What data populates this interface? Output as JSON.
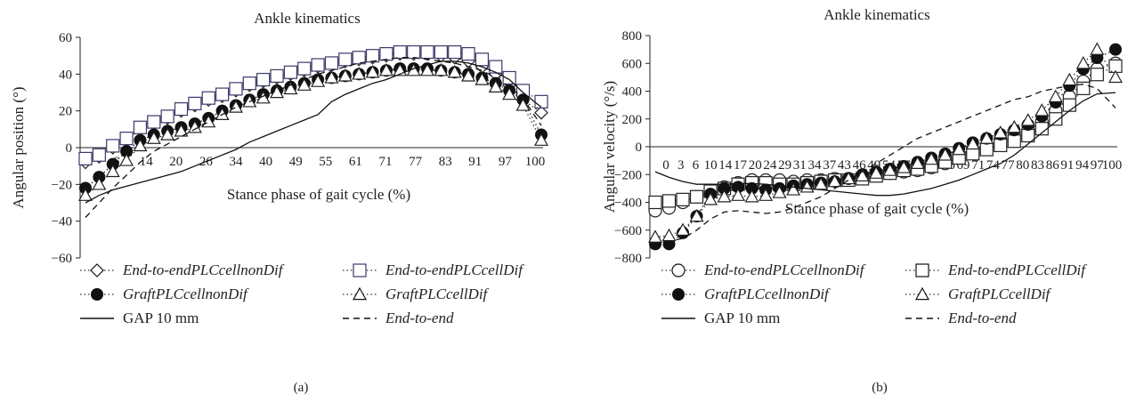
{
  "chart_data": [
    {
      "panel_label": "(a)",
      "type": "line",
      "title": "Ankle kinematics",
      "xlabel": "Stance phase of gait cycle (%)",
      "ylabel": "Angular position (°)",
      "ylim": [
        -60,
        60
      ],
      "yticks": [
        60,
        40,
        20,
        0,
        -20,
        -40,
        -60
      ],
      "xticks": [
        "0",
        "6",
        "14",
        "20",
        "26",
        "34",
        "40",
        "49",
        "55",
        "61",
        "71",
        "77",
        "83",
        "91",
        "97",
        "100"
      ],
      "xlim": [
        0,
        100
      ],
      "grid": false,
      "x": [
        0,
        3,
        6,
        9,
        12,
        15,
        18,
        21,
        24,
        27,
        30,
        33,
        36,
        39,
        42,
        45,
        48,
        51,
        54,
        57,
        60,
        63,
        66,
        69,
        72,
        75,
        78,
        81,
        84,
        87,
        90,
        93,
        96,
        100
      ],
      "series": [
        {
          "name": "End-to-endPLCcellnonDif",
          "style": "dotted",
          "marker": "diamond",
          "color": "#222222",
          "values": [
            -8,
            -5,
            0,
            4,
            10,
            13,
            16,
            20,
            23,
            26,
            28,
            31,
            34,
            36,
            38,
            40,
            42,
            44,
            46,
            47,
            48,
            49,
            50,
            51,
            51,
            51,
            50,
            49,
            47,
            44,
            40,
            34,
            26,
            19
          ]
        },
        {
          "name": "End-to-endPLCcellDif",
          "style": "dotted",
          "marker": "square",
          "color": "#3a3a6a",
          "values": [
            -6,
            -4,
            1,
            5,
            11,
            14,
            17,
            21,
            24,
            27,
            29,
            32,
            35,
            37,
            39,
            41,
            43,
            45,
            46,
            48,
            49,
            50,
            51,
            52,
            52,
            52,
            52,
            52,
            51,
            48,
            44,
            38,
            31,
            25
          ]
        },
        {
          "name": "GraftPLCcellnonDif",
          "style": "dotted",
          "marker": "circle-filled",
          "color": "#111111",
          "values": [
            -22,
            -16,
            -9,
            -2,
            4,
            7,
            9,
            11,
            13,
            16,
            20,
            23,
            26,
            29,
            31,
            33,
            35,
            37,
            38,
            39,
            40,
            41,
            42,
            43,
            43,
            43,
            42,
            41,
            40,
            38,
            35,
            31,
            26,
            7
          ]
        },
        {
          "name": "GraftPLCcellDif",
          "style": "dotted",
          "marker": "triangle",
          "color": "#222222",
          "values": [
            -26,
            -20,
            -13,
            -7,
            1,
            5,
            7,
            9,
            11,
            14,
            18,
            22,
            25,
            27,
            30,
            32,
            34,
            36,
            38,
            39,
            40,
            41,
            42,
            42,
            42,
            42,
            42,
            41,
            39,
            37,
            33,
            29,
            23,
            4
          ]
        },
        {
          "name": "GAP 10 mm",
          "style": "solid",
          "marker": "none",
          "color": "#111111",
          "values": [
            -30,
            -26,
            -23,
            -21,
            -19,
            -17,
            -15,
            -13,
            -10,
            -7,
            -4,
            -1,
            3,
            6,
            9,
            12,
            15,
            18,
            25,
            29,
            32,
            35,
            37,
            40,
            43,
            45,
            47,
            47,
            46,
            44,
            41,
            37,
            30,
            22
          ]
        },
        {
          "name": "End-to-end",
          "style": "dashed",
          "marker": "none",
          "color": "#111111",
          "values": [
            -38,
            -30,
            -22,
            -15,
            -8,
            -2,
            2,
            6,
            10,
            14,
            18,
            22,
            25,
            28,
            31,
            34,
            37,
            40,
            42,
            44,
            46,
            47,
            48,
            49,
            49,
            48,
            47,
            46,
            44,
            42,
            38,
            33,
            27,
            12
          ]
        }
      ],
      "legend": {
        "placement": "bottom",
        "entries": [
          {
            "label": "End-to-endPLCcellnonDif",
            "italic": true,
            "marker": "diamond"
          },
          {
            "label": "End-to-endPLCcellDif",
            "italic": true,
            "marker": "square"
          },
          {
            "label": "GraftPLCcellnonDif",
            "italic": true,
            "marker": "circle-filled"
          },
          {
            "label": "GraftPLCcellDif",
            "italic": true,
            "marker": "triangle"
          },
          {
            "label": "GAP 10 mm",
            "italic": false,
            "marker": "solid"
          },
          {
            "label": "End-to-end",
            "italic": true,
            "marker": "dashed"
          }
        ]
      }
    },
    {
      "panel_label": "(b)",
      "type": "line",
      "title": "Ankle kinematics",
      "xlabel": "Stance phase of gait cycle (%)",
      "ylabel": "Angular velocity (°/s)",
      "ylim": [
        -800,
        800
      ],
      "yticks": [
        800,
        600,
        400,
        200,
        0,
        -200,
        -400,
        -600,
        -800
      ],
      "xticks": [
        "0",
        "3",
        "6",
        "10",
        "14",
        "17",
        "20",
        "24",
        "29",
        "31",
        "34",
        "37",
        "43",
        "46",
        "49",
        "54",
        "57",
        "60",
        "63",
        "66",
        "69",
        "71",
        "74",
        "77",
        "80",
        "83",
        "86",
        "91",
        "94",
        "97",
        "100"
      ],
      "xlim": [
        0,
        100
      ],
      "grid": false,
      "x": [
        0,
        3,
        6,
        9,
        12,
        15,
        18,
        21,
        24,
        27,
        30,
        33,
        36,
        39,
        42,
        45,
        48,
        51,
        54,
        57,
        60,
        63,
        66,
        69,
        72,
        75,
        78,
        81,
        84,
        87,
        90,
        93,
        96,
        100
      ],
      "series": [
        {
          "name": "End-to-endPLCcellnonDif",
          "style": "dotted",
          "marker": "circle",
          "color": "#222222",
          "values": [
            -460,
            -440,
            -400,
            -360,
            -330,
            -290,
            -260,
            -240,
            -240,
            -240,
            -250,
            -240,
            -240,
            -230,
            -230,
            -220,
            -200,
            -190,
            -180,
            -170,
            -150,
            -120,
            -80,
            -40,
            0,
            40,
            80,
            120,
            180,
            260,
            360,
            470,
            560,
            600
          ]
        },
        {
          "name": "End-to-endPLCcellDif",
          "style": "dotted",
          "marker": "square",
          "color": "#222222",
          "values": [
            -400,
            -390,
            -380,
            -360,
            -320,
            -300,
            -270,
            -260,
            -260,
            -270,
            -270,
            -260,
            -250,
            -240,
            -240,
            -230,
            -210,
            -190,
            -170,
            -160,
            -140,
            -110,
            -80,
            -50,
            -20,
            10,
            40,
            80,
            130,
            200,
            300,
            420,
            520,
            580
          ]
        },
        {
          "name": "GraftPLCcellnonDif",
          "style": "dotted",
          "marker": "circle-filled",
          "color": "#111111",
          "values": [
            -700,
            -700,
            -620,
            -500,
            -340,
            -300,
            -290,
            -300,
            -310,
            -300,
            -280,
            -270,
            -260,
            -250,
            -230,
            -200,
            -180,
            -160,
            -140,
            -110,
            -80,
            -50,
            -10,
            30,
            60,
            90,
            120,
            160,
            220,
            320,
            440,
            560,
            640,
            700
          ]
        },
        {
          "name": "GraftPLCcellDif",
          "style": "dotted",
          "marker": "triangle",
          "color": "#222222",
          "values": [
            -650,
            -640,
            -600,
            -500,
            -380,
            -360,
            -350,
            -360,
            -350,
            -330,
            -310,
            -290,
            -270,
            -250,
            -230,
            -210,
            -190,
            -170,
            -150,
            -120,
            -90,
            -60,
            -20,
            20,
            60,
            100,
            140,
            190,
            260,
            360,
            480,
            600,
            700,
            500
          ]
        },
        {
          "name": "GAP 10 mm",
          "style": "solid",
          "marker": "none",
          "color": "#111111",
          "values": [
            -180,
            -220,
            -250,
            -270,
            -270,
            -270,
            -265,
            -265,
            -270,
            -280,
            -290,
            -300,
            -310,
            -320,
            -330,
            -340,
            -350,
            -350,
            -340,
            -320,
            -300,
            -270,
            -240,
            -200,
            -160,
            -120,
            -60,
            20,
            100,
            180,
            260,
            330,
            380,
            390
          ]
        },
        {
          "name": "End-to-end",
          "style": "dashed",
          "marker": "none",
          "color": "#111111",
          "values": [
            -700,
            -680,
            -660,
            -600,
            -520,
            -470,
            -460,
            -470,
            -480,
            -470,
            -440,
            -400,
            -360,
            -300,
            -240,
            -180,
            -120,
            -60,
            0,
            60,
            100,
            140,
            180,
            220,
            260,
            300,
            340,
            360,
            400,
            420,
            440,
            450,
            420,
            280
          ]
        }
      ],
      "legend": {
        "placement": "bottom",
        "entries": [
          {
            "label": "End-to-endPLCcellnonDif",
            "italic": true,
            "marker": "circle"
          },
          {
            "label": "End-to-endPLCcellDif",
            "italic": true,
            "marker": "square"
          },
          {
            "label": "GraftPLCcellnonDif",
            "italic": true,
            "marker": "circle-filled"
          },
          {
            "label": "GraftPLCcellDif",
            "italic": true,
            "marker": "triangle"
          },
          {
            "label": "GAP 10 mm",
            "italic": false,
            "marker": "solid"
          },
          {
            "label": "End-to-end",
            "italic": true,
            "marker": "dashed"
          }
        ]
      }
    }
  ]
}
